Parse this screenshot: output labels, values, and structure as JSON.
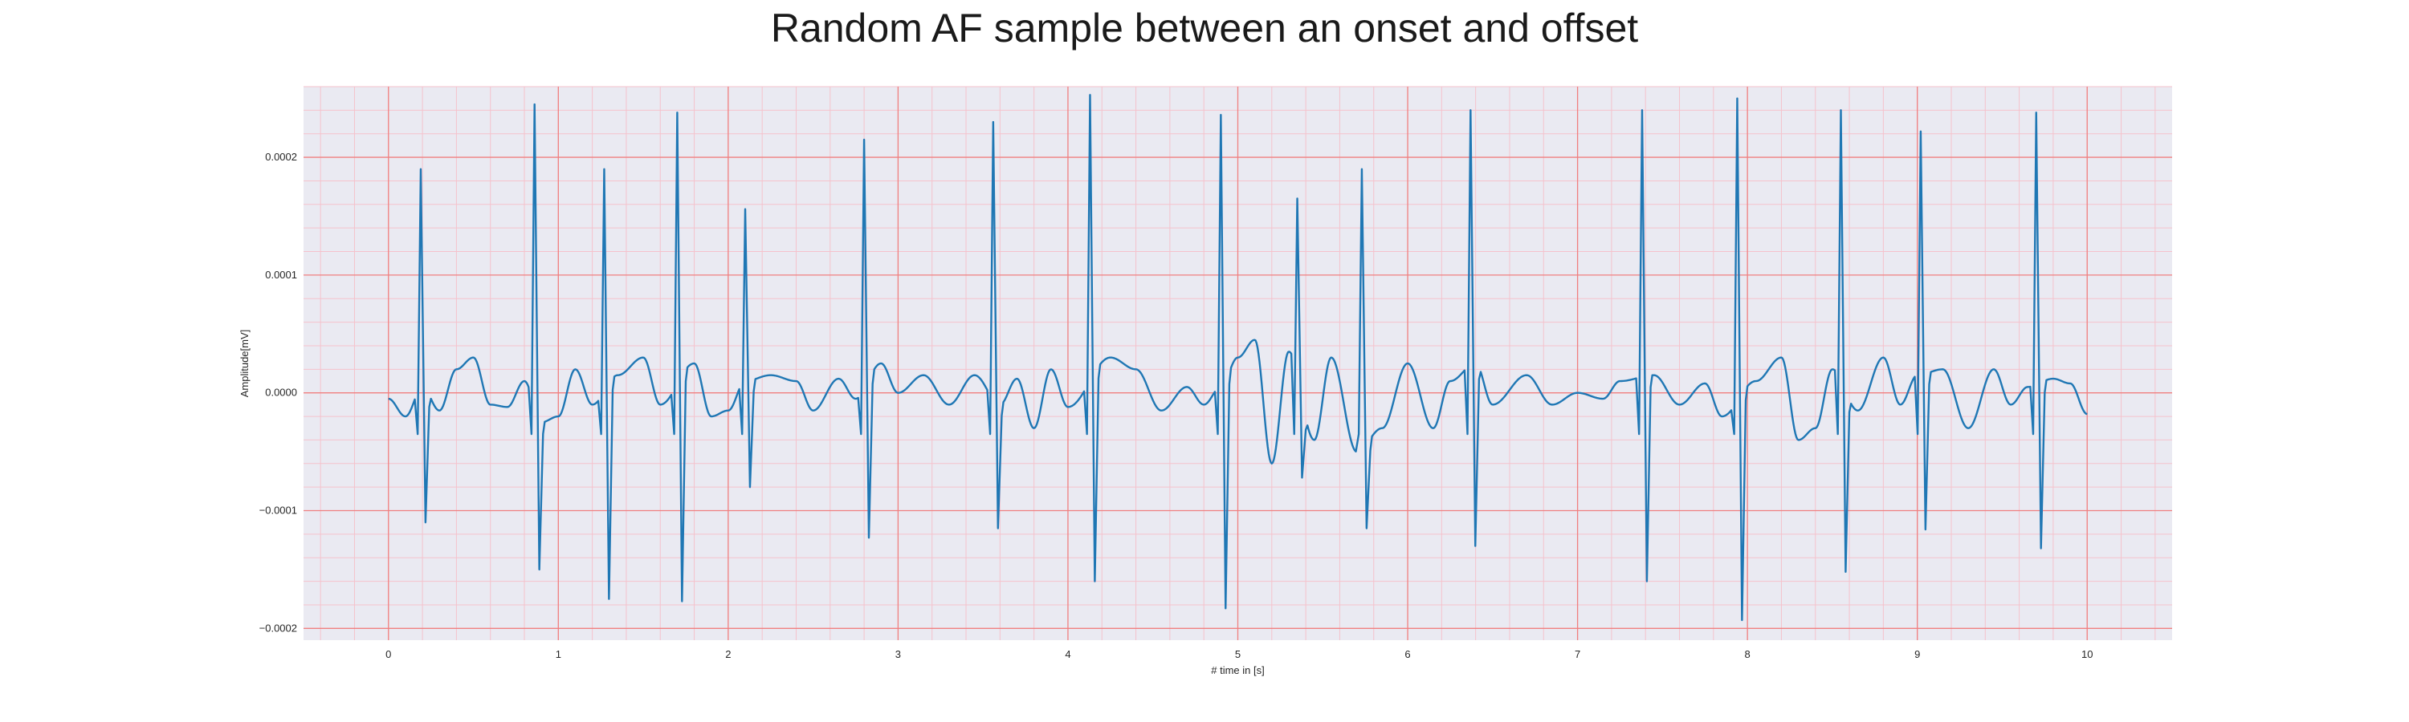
{
  "chart_data": {
    "type": "line",
    "title": "Random AF sample between an onset and offset",
    "xlabel": "# time in [s]",
    "ylabel": "Amplitude[mV]",
    "xlim": [
      -0.5,
      10.5
    ],
    "ylim": [
      -0.00021,
      0.00026
    ],
    "xticks": [
      0,
      1,
      2,
      3,
      4,
      5,
      6,
      7,
      8,
      9,
      10
    ],
    "xtick_labels": [
      "0",
      "1",
      "2",
      "3",
      "4",
      "5",
      "6",
      "7",
      "8",
      "9",
      "10"
    ],
    "yticks": [
      -0.0002,
      -0.0001,
      0.0,
      0.0001,
      0.0002
    ],
    "ytick_labels": [
      "−0.0002",
      "−0.0001",
      "0.0000",
      "0.0001",
      "0.0002"
    ],
    "grid": true,
    "colors": {
      "line": "#1f77b4",
      "major_grid": "#f08080",
      "minor_grid": "#f5c2cc",
      "plot_bg": "#eaeaf2"
    },
    "series": [
      {
        "baseline": [
          [
            0.0,
            -5e-06
          ],
          [
            0.1,
            -2e-05
          ],
          [
            0.2,
            5e-06
          ],
          [
            0.3,
            -1.5e-05
          ],
          [
            0.4,
            2e-05
          ],
          [
            0.5,
            3e-05
          ],
          [
            0.6,
            -1e-05
          ],
          [
            0.7,
            -1.2e-05
          ],
          [
            0.8,
            1e-05
          ],
          [
            0.9,
            -2.5e-05
          ],
          [
            1.0,
            -2e-05
          ],
          [
            1.1,
            2e-05
          ],
          [
            1.2,
            -1e-05
          ],
          [
            1.35,
            1.5e-05
          ],
          [
            1.5,
            3e-05
          ],
          [
            1.6,
            -1e-05
          ],
          [
            1.8,
            2.5e-05
          ],
          [
            1.9,
            -2e-05
          ],
          [
            2.0,
            -1.5e-05
          ],
          [
            2.1,
            1e-05
          ],
          [
            2.25,
            1.5e-05
          ],
          [
            2.4,
            1e-05
          ],
          [
            2.5,
            -1.5e-05
          ],
          [
            2.65,
            1.2e-05
          ],
          [
            2.75,
            -5e-06
          ],
          [
            2.9,
            2.5e-05
          ],
          [
            3.0,
            0.0
          ],
          [
            3.15,
            1.5e-05
          ],
          [
            3.3,
            -1e-05
          ],
          [
            3.45,
            1.5e-05
          ],
          [
            3.6,
            -1e-05
          ],
          [
            3.7,
            1.2e-05
          ],
          [
            3.8,
            -3e-05
          ],
          [
            3.9,
            2e-05
          ],
          [
            4.0,
            -1.2e-05
          ],
          [
            4.25,
            3e-05
          ],
          [
            4.4,
            2e-05
          ],
          [
            4.55,
            -1.5e-05
          ],
          [
            4.7,
            5e-06
          ],
          [
            4.8,
            -1e-05
          ],
          [
            4.9,
            5e-06
          ],
          [
            5.0,
            3e-05
          ],
          [
            5.1,
            4.5e-05
          ],
          [
            5.2,
            -6e-05
          ],
          [
            5.3,
            3.5e-05
          ],
          [
            5.45,
            -4e-05
          ],
          [
            5.55,
            3e-05
          ],
          [
            5.7,
            -5e-05
          ],
          [
            5.85,
            -3e-05
          ],
          [
            6.0,
            2.5e-05
          ],
          [
            6.15,
            -3e-05
          ],
          [
            6.25,
            1e-05
          ],
          [
            6.4,
            2.5e-05
          ],
          [
            6.5,
            -1e-05
          ],
          [
            6.7,
            1.5e-05
          ],
          [
            6.85,
            -1e-05
          ],
          [
            7.0,
            0.0
          ],
          [
            7.15,
            -5e-06
          ],
          [
            7.25,
            1e-05
          ],
          [
            7.45,
            1.5e-05
          ],
          [
            7.6,
            -1e-05
          ],
          [
            7.75,
            8e-06
          ],
          [
            7.85,
            -2e-05
          ],
          [
            8.05,
            1e-05
          ],
          [
            8.2,
            3e-05
          ],
          [
            8.3,
            -4e-05
          ],
          [
            8.4,
            -3e-05
          ],
          [
            8.5,
            2e-05
          ],
          [
            8.65,
            -1.5e-05
          ],
          [
            8.8,
            3e-05
          ],
          [
            8.9,
            -1e-05
          ],
          [
            9.0,
            1.5e-05
          ],
          [
            9.15,
            2e-05
          ],
          [
            9.3,
            -3e-05
          ],
          [
            9.45,
            2e-05
          ],
          [
            9.55,
            -1e-05
          ],
          [
            9.65,
            5e-06
          ],
          [
            9.8,
            1.2e-05
          ],
          [
            9.9,
            8e-06
          ],
          [
            10.0,
            -1.8e-05
          ]
        ],
        "peaks": [
          [
            0.19,
            0.00019,
            -0.00011
          ],
          [
            0.86,
            0.000245,
            -0.00015
          ],
          [
            1.27,
            0.00019,
            -0.000175
          ],
          [
            1.7,
            0.000238,
            -0.000177
          ],
          [
            2.1,
            0.000156,
            -8e-05
          ],
          [
            2.8,
            0.000215,
            -0.000123
          ],
          [
            3.56,
            0.00023,
            -0.000115
          ],
          [
            4.13,
            0.000253,
            -0.00016
          ],
          [
            4.9,
            0.000236,
            -0.000183
          ],
          [
            5.35,
            0.000165,
            -7.2e-05
          ],
          [
            5.73,
            0.00019,
            -0.000115
          ],
          [
            6.37,
            0.00024,
            -0.00013
          ],
          [
            7.38,
            0.00024,
            -0.00016
          ],
          [
            7.94,
            0.00025,
            -0.000193
          ],
          [
            8.55,
            0.00024,
            -0.000152
          ],
          [
            9.02,
            0.000222,
            -0.000116
          ],
          [
            9.7,
            0.000238,
            -0.000132
          ]
        ]
      }
    ]
  }
}
